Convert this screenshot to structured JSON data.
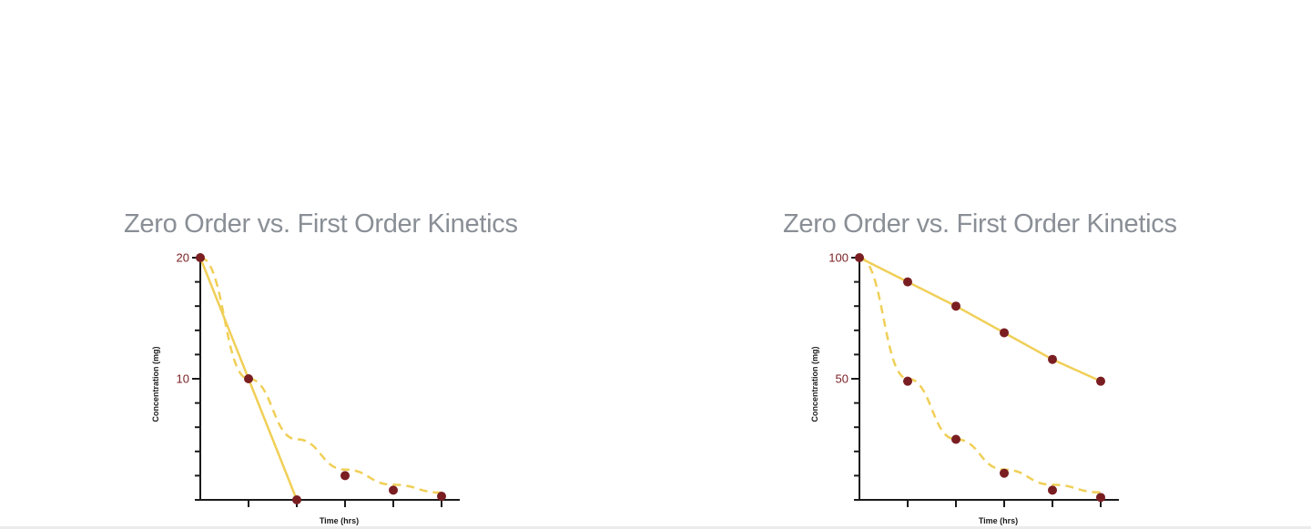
{
  "chart_data": [
    {
      "type": "line",
      "title": "Zero Order vs. First Order Kinetics",
      "xlabel": "Time (hrs)",
      "ylabel": "Concentration (mg)",
      "x_ticks": 5,
      "y_tick_labels": [
        "20",
        "10"
      ],
      "ylim": [
        0,
        20
      ],
      "xlim": [
        0,
        5
      ],
      "grid": false,
      "legend": "none",
      "colors": {
        "line": "#f0cf57",
        "points": "#7a1e22"
      },
      "series": [
        {
          "style": "solid",
          "x": [
            0,
            1,
            2
          ],
          "y": [
            20,
            10,
            0
          ]
        },
        {
          "style": "dashed",
          "x": [
            0,
            1,
            2,
            3,
            4,
            5
          ],
          "y": [
            20,
            10,
            5,
            2.5,
            1.25,
            0.6
          ]
        }
      ],
      "points": {
        "x": [
          0,
          1,
          2,
          3,
          4,
          5
        ],
        "y": [
          20,
          10,
          0,
          2,
          0.8,
          0.3
        ]
      }
    },
    {
      "type": "line",
      "title": "Zero Order vs. First Order Kinetics",
      "xlabel": "Time (hrs)",
      "ylabel": "Concentration (mg)",
      "x_ticks": 5,
      "y_tick_labels": [
        "100",
        "50"
      ],
      "ylim": [
        0,
        100
      ],
      "xlim": [
        0,
        5
      ],
      "grid": false,
      "legend": "none",
      "colors": {
        "line": "#f0cf57",
        "points": "#7a1e22"
      },
      "series": [
        {
          "style": "solid",
          "x": [
            0,
            1,
            2,
            3,
            4,
            5
          ],
          "y": [
            100,
            90,
            80,
            69,
            58,
            49
          ]
        },
        {
          "style": "dashed",
          "x": [
            0,
            1,
            2,
            3,
            4,
            5
          ],
          "y": [
            100,
            50,
            25,
            12.5,
            6.25,
            3.1
          ]
        }
      ],
      "points": {
        "x": [
          0,
          1,
          2,
          3,
          4,
          5,
          1,
          2,
          3,
          4,
          5
        ],
        "y": [
          100,
          90,
          80,
          69,
          58,
          49,
          49,
          25,
          11,
          4,
          1
        ]
      }
    }
  ]
}
